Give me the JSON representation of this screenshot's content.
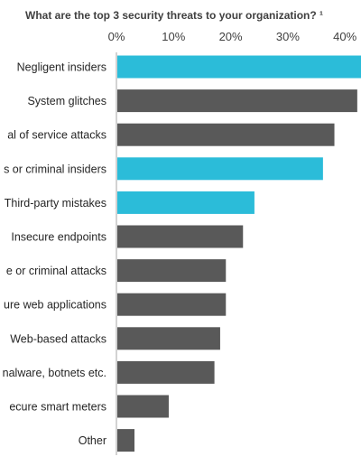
{
  "chart_data": {
    "type": "bar",
    "orientation": "horizontal",
    "title": "What are the top 3 security threats to your organization? ¹",
    "xlabel": "",
    "ylabel": "",
    "xlim": [
      0,
      42
    ],
    "x_ticks": [
      "0%",
      "10%",
      "20%",
      "30%",
      "40%"
    ],
    "x_tick_values": [
      0,
      10,
      20,
      30,
      40
    ],
    "grid": false,
    "legend": "none",
    "highlight_color": "#2bbcd9",
    "default_color": "#595959",
    "categories": [
      "Negligent insiders",
      "System glitches",
      "al of service attacks",
      "s or criminal insiders",
      "Third-party mistakes",
      "Insecure endpoints",
      "e or criminal attacks",
      "ure web applications",
      "Web-based attacks",
      "nalware, botnets etc.",
      "ecure smart meters",
      "Other"
    ],
    "values": [
      44,
      42,
      38,
      36,
      24,
      22,
      19,
      19,
      18,
      17,
      9,
      3
    ],
    "highlighted": [
      true,
      false,
      false,
      true,
      true,
      false,
      false,
      false,
      false,
      false,
      false,
      false
    ]
  }
}
